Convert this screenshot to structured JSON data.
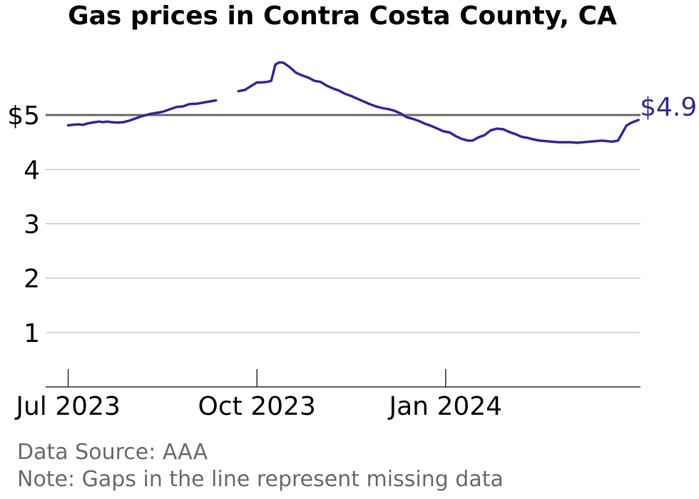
{
  "chart_data": {
    "type": "line",
    "title": "Gas prices in Contra Costa County, CA",
    "xlabel": "",
    "ylabel": "",
    "x_tick_labels": [
      "Jul 2023",
      "Oct 2023",
      "Jan 2024"
    ],
    "x_tick_dates": [
      "2023-07-01",
      "2023-10-01",
      "2024-01-01"
    ],
    "y_tick_labels": [
      "1",
      "2",
      "3",
      "4",
      "$5"
    ],
    "y_tick_values": [
      1,
      2,
      3,
      4,
      5
    ],
    "ylim": [
      0,
      6
    ],
    "xlim": [
      "2023-06-20",
      "2024-04-05"
    ],
    "grid": "horizontal",
    "reference_line": 5,
    "end_label": "$4.91",
    "colors": {
      "line": "#2f2c9a",
      "end_label": "#2f2c9a",
      "reference": "#6b6b6b",
      "grid": "#b3b3b3",
      "footer": "#6b6b6b"
    },
    "series": [
      {
        "segments": [
          [
            {
              "x": "2023-07-01",
              "y": 4.81
            },
            {
              "x": "2023-07-03",
              "y": 4.82
            },
            {
              "x": "2023-07-06",
              "y": 4.83
            },
            {
              "x": "2023-07-08",
              "y": 4.82
            },
            {
              "x": "2023-07-11",
              "y": 4.85
            },
            {
              "x": "2023-07-14",
              "y": 4.87
            },
            {
              "x": "2023-07-16",
              "y": 4.88
            },
            {
              "x": "2023-07-18",
              "y": 4.87
            },
            {
              "x": "2023-07-20",
              "y": 4.88
            },
            {
              "x": "2023-07-22",
              "y": 4.87
            },
            {
              "x": "2023-07-25",
              "y": 4.86
            },
            {
              "x": "2023-07-28",
              "y": 4.87
            },
            {
              "x": "2023-07-31",
              "y": 4.9
            },
            {
              "x": "2023-08-03",
              "y": 4.94
            },
            {
              "x": "2023-08-06",
              "y": 4.98
            },
            {
              "x": "2023-08-10",
              "y": 5.02
            },
            {
              "x": "2023-08-13",
              "y": 5.04
            },
            {
              "x": "2023-08-16",
              "y": 5.06
            },
            {
              "x": "2023-08-19",
              "y": 5.1
            },
            {
              "x": "2023-08-23",
              "y": 5.15
            },
            {
              "x": "2023-08-26",
              "y": 5.16
            },
            {
              "x": "2023-08-29",
              "y": 5.2
            },
            {
              "x": "2023-09-02",
              "y": 5.21
            },
            {
              "x": "2023-09-05",
              "y": 5.23
            },
            {
              "x": "2023-09-08",
              "y": 5.25
            },
            {
              "x": "2023-09-11",
              "y": 5.27
            }
          ],
          [
            {
              "x": "2023-09-22",
              "y": 5.44
            },
            {
              "x": "2023-09-25",
              "y": 5.46
            },
            {
              "x": "2023-09-28",
              "y": 5.53
            },
            {
              "x": "2023-10-01",
              "y": 5.6
            },
            {
              "x": "2023-10-03",
              "y": 5.6
            },
            {
              "x": "2023-10-06",
              "y": 5.61
            },
            {
              "x": "2023-10-08",
              "y": 5.63
            },
            {
              "x": "2023-10-10",
              "y": 5.93
            },
            {
              "x": "2023-10-12",
              "y": 5.97
            },
            {
              "x": "2023-10-14",
              "y": 5.96
            },
            {
              "x": "2023-10-17",
              "y": 5.88
            },
            {
              "x": "2023-10-20",
              "y": 5.78
            },
            {
              "x": "2023-10-23",
              "y": 5.73
            },
            {
              "x": "2023-10-26",
              "y": 5.69
            },
            {
              "x": "2023-10-29",
              "y": 5.63
            },
            {
              "x": "2023-11-01",
              "y": 5.61
            },
            {
              "x": "2023-11-04",
              "y": 5.54
            },
            {
              "x": "2023-11-07",
              "y": 5.49
            },
            {
              "x": "2023-11-10",
              "y": 5.45
            },
            {
              "x": "2023-11-13",
              "y": 5.39
            },
            {
              "x": "2023-11-16",
              "y": 5.35
            },
            {
              "x": "2023-11-19",
              "y": 5.3
            },
            {
              "x": "2023-11-22",
              "y": 5.25
            },
            {
              "x": "2023-11-25",
              "y": 5.2
            },
            {
              "x": "2023-11-28",
              "y": 5.16
            },
            {
              "x": "2023-12-01",
              "y": 5.13
            },
            {
              "x": "2023-12-04",
              "y": 5.11
            },
            {
              "x": "2023-12-07",
              "y": 5.08
            },
            {
              "x": "2023-12-10",
              "y": 5.03
            },
            {
              "x": "2023-12-13",
              "y": 4.96
            },
            {
              "x": "2023-12-16",
              "y": 4.93
            },
            {
              "x": "2023-12-19",
              "y": 4.89
            },
            {
              "x": "2023-12-22",
              "y": 4.84
            },
            {
              "x": "2023-12-25",
              "y": 4.8
            },
            {
              "x": "2023-12-28",
              "y": 4.75
            },
            {
              "x": "2023-12-31",
              "y": 4.7
            },
            {
              "x": "2024-01-03",
              "y": 4.68
            },
            {
              "x": "2024-01-06",
              "y": 4.61
            },
            {
              "x": "2024-01-09",
              "y": 4.56
            },
            {
              "x": "2024-01-12",
              "y": 4.53
            },
            {
              "x": "2024-01-14",
              "y": 4.53
            },
            {
              "x": "2024-01-17",
              "y": 4.59
            },
            {
              "x": "2024-01-20",
              "y": 4.63
            },
            {
              "x": "2024-01-23",
              "y": 4.72
            },
            {
              "x": "2024-01-26",
              "y": 4.75
            },
            {
              "x": "2024-01-29",
              "y": 4.74
            },
            {
              "x": "2024-02-01",
              "y": 4.69
            },
            {
              "x": "2024-02-04",
              "y": 4.65
            },
            {
              "x": "2024-02-07",
              "y": 4.6
            },
            {
              "x": "2024-02-10",
              "y": 4.58
            },
            {
              "x": "2024-02-13",
              "y": 4.55
            },
            {
              "x": "2024-02-16",
              "y": 4.53
            },
            {
              "x": "2024-02-19",
              "y": 4.52
            },
            {
              "x": "2024-02-22",
              "y": 4.51
            },
            {
              "x": "2024-02-25",
              "y": 4.5
            },
            {
              "x": "2024-02-28",
              "y": 4.5
            },
            {
              "x": "2024-03-02",
              "y": 4.5
            },
            {
              "x": "2024-03-05",
              "y": 4.49
            },
            {
              "x": "2024-03-08",
              "y": 4.5
            },
            {
              "x": "2024-03-11",
              "y": 4.51
            },
            {
              "x": "2024-03-14",
              "y": 4.52
            },
            {
              "x": "2024-03-17",
              "y": 4.53
            },
            {
              "x": "2024-03-20",
              "y": 4.52
            },
            {
              "x": "2024-03-22",
              "y": 4.51
            },
            {
              "x": "2024-03-25",
              "y": 4.53
            },
            {
              "x": "2024-03-27",
              "y": 4.66
            },
            {
              "x": "2024-03-29",
              "y": 4.8
            },
            {
              "x": "2024-03-31",
              "y": 4.85
            },
            {
              "x": "2024-04-02",
              "y": 4.88
            },
            {
              "x": "2024-04-04",
              "y": 4.91
            }
          ]
        ]
      }
    ]
  },
  "footer": {
    "source": "Data Source: AAA",
    "note": "Note: Gaps in the line represent missing data"
  }
}
